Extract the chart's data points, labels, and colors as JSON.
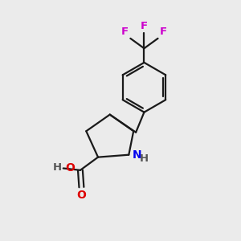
{
  "bg_color": "#ebebeb",
  "bond_color": "#1a1a1a",
  "N_color": "#0000ee",
  "O_color": "#dd0000",
  "F_color": "#cc00cc",
  "H_color": "#555555",
  "line_width": 1.6,
  "figsize": [
    3.0,
    3.0
  ],
  "dpi": 100,
  "xlim": [
    0,
    10
  ],
  "ylim": [
    0,
    10
  ]
}
